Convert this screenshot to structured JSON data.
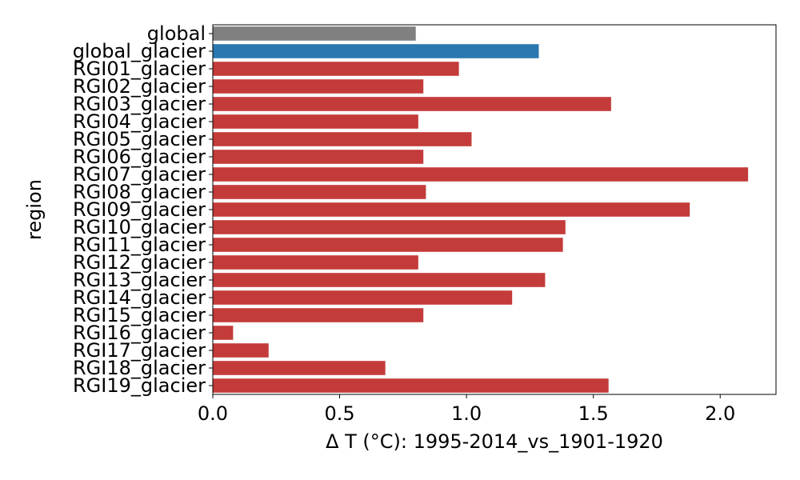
{
  "colors": {
    "global": "#808080",
    "global_glacier": "#2c77b0",
    "regional": "#c33b3a"
  },
  "chart_data": {
    "type": "bar",
    "orientation": "horizontal",
    "xlabel": "Δ T (°C): 1995-2014_vs_1901-1920",
    "ylabel": "region",
    "xlim": [
      0,
      2.22
    ],
    "xticks": [
      "0.0",
      "0.5",
      "1.0",
      "1.5",
      "2.0"
    ],
    "grid": false,
    "legend": "none",
    "categories": [
      "global",
      "global_glacier",
      "RGI01_glacier",
      "RGI02_glacier",
      "RGI03_glacier",
      "RGI04_glacier",
      "RGI05_glacier",
      "RGI06_glacier",
      "RGI07_glacier",
      "RGI08_glacier",
      "RGI09_glacier",
      "RGI10_glacier",
      "RGI11_glacier",
      "RGI12_glacier",
      "RGI13_glacier",
      "RGI14_glacier",
      "RGI15_glacier",
      "RGI16_glacier",
      "RGI17_glacier",
      "RGI18_glacier",
      "RGI19_glacier"
    ],
    "values": [
      0.8,
      1.285,
      0.97,
      0.83,
      1.57,
      0.81,
      1.02,
      0.83,
      2.11,
      0.84,
      1.88,
      1.39,
      1.38,
      0.81,
      1.31,
      1.18,
      0.83,
      0.08,
      0.22,
      0.68,
      1.56
    ],
    "bar_colors": [
      "global",
      "global_glacier",
      "regional",
      "regional",
      "regional",
      "regional",
      "regional",
      "regional",
      "regional",
      "regional",
      "regional",
      "regional",
      "regional",
      "regional",
      "regional",
      "regional",
      "regional",
      "regional",
      "regional",
      "regional",
      "regional"
    ]
  }
}
